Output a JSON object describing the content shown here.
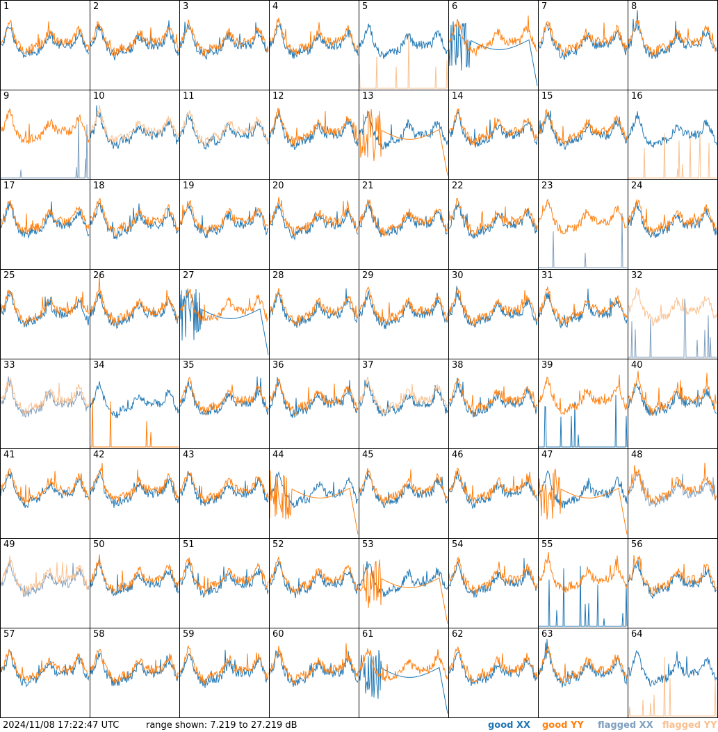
{
  "timestamp": "2024/11/08 17:22:47 UTC",
  "range_text": "range shown: 7.219 to 27.219 dB",
  "legend": {
    "good_xx": "good XX",
    "good_yy": "good YY",
    "flagged_xx": "flagged XX",
    "flagged_yy": "flagged YY"
  },
  "colors": {
    "good_xx": "#1f77b4",
    "good_yy": "#ff7f0e",
    "flagged_xx": "#7f9fbf",
    "flagged_yy": "#f9c08f"
  },
  "chart_data": {
    "type": "line",
    "grid_layout": [
      8,
      8
    ],
    "ylim_db": [
      7.219,
      27.219
    ],
    "panels": [
      {
        "id": 1,
        "xx_status": "good",
        "yy_status": "good",
        "xx_shape": "normal",
        "yy_shape": "normal"
      },
      {
        "id": 2,
        "xx_status": "good",
        "yy_status": "good",
        "xx_shape": "normal",
        "yy_shape": "normal"
      },
      {
        "id": 3,
        "xx_status": "good",
        "yy_status": "good",
        "xx_shape": "normal",
        "yy_shape": "normal"
      },
      {
        "id": 4,
        "xx_status": "good",
        "yy_status": "good",
        "xx_shape": "normal",
        "yy_shape": "normal"
      },
      {
        "id": 5,
        "xx_status": "good",
        "yy_status": "flagged",
        "xx_shape": "normal",
        "yy_shape": "spikes"
      },
      {
        "id": 6,
        "xx_status": "good",
        "yy_status": "good",
        "xx_shape": "dip",
        "yy_shape": "normal"
      },
      {
        "id": 7,
        "xx_status": "good",
        "yy_status": "good",
        "xx_shape": "normal",
        "yy_shape": "normal"
      },
      {
        "id": 8,
        "xx_status": "good",
        "yy_status": "good",
        "xx_shape": "normal",
        "yy_shape": "normal"
      },
      {
        "id": 9,
        "xx_status": "flagged",
        "yy_status": "good",
        "xx_shape": "spikes",
        "yy_shape": "normal"
      },
      {
        "id": 10,
        "xx_status": "good",
        "yy_status": "flagged",
        "xx_shape": "normal",
        "yy_shape": "normal"
      },
      {
        "id": 11,
        "xx_status": "good",
        "yy_status": "flagged",
        "xx_shape": "normal",
        "yy_shape": "normal"
      },
      {
        "id": 12,
        "xx_status": "good",
        "yy_status": "good",
        "xx_shape": "normal",
        "yy_shape": "normal"
      },
      {
        "id": 13,
        "xx_status": "good",
        "yy_status": "good",
        "xx_shape": "normal",
        "yy_shape": "dip"
      },
      {
        "id": 14,
        "xx_status": "good",
        "yy_status": "good",
        "xx_shape": "normal",
        "yy_shape": "normal"
      },
      {
        "id": 15,
        "xx_status": "good",
        "yy_status": "good",
        "xx_shape": "normal",
        "yy_shape": "normal"
      },
      {
        "id": 16,
        "xx_status": "good",
        "yy_status": "flagged",
        "xx_shape": "normal",
        "yy_shape": "spikes"
      },
      {
        "id": 17,
        "xx_status": "good",
        "yy_status": "good",
        "xx_shape": "normal",
        "yy_shape": "normal"
      },
      {
        "id": 18,
        "xx_status": "good",
        "yy_status": "good",
        "xx_shape": "normal",
        "yy_shape": "normal"
      },
      {
        "id": 19,
        "xx_status": "good",
        "yy_status": "good",
        "xx_shape": "normal",
        "yy_shape": "normal"
      },
      {
        "id": 20,
        "xx_status": "good",
        "yy_status": "good",
        "xx_shape": "normal",
        "yy_shape": "normal"
      },
      {
        "id": 21,
        "xx_status": "good",
        "yy_status": "good",
        "xx_shape": "normal",
        "yy_shape": "normal"
      },
      {
        "id": 22,
        "xx_status": "good",
        "yy_status": "good",
        "xx_shape": "normal",
        "yy_shape": "normal"
      },
      {
        "id": 23,
        "xx_status": "flagged",
        "yy_status": "good",
        "xx_shape": "spikes",
        "yy_shape": "normal"
      },
      {
        "id": 24,
        "xx_status": "good",
        "yy_status": "good",
        "xx_shape": "normal",
        "yy_shape": "normal"
      },
      {
        "id": 25,
        "xx_status": "good",
        "yy_status": "good",
        "xx_shape": "normal",
        "yy_shape": "normal"
      },
      {
        "id": 26,
        "xx_status": "good",
        "yy_status": "good",
        "xx_shape": "normal",
        "yy_shape": "normal"
      },
      {
        "id": 27,
        "xx_status": "good",
        "yy_status": "good",
        "xx_shape": "dip",
        "yy_shape": "normal"
      },
      {
        "id": 28,
        "xx_status": "good",
        "yy_status": "good",
        "xx_shape": "normal",
        "yy_shape": "normal"
      },
      {
        "id": 29,
        "xx_status": "good",
        "yy_status": "good",
        "xx_shape": "normal",
        "yy_shape": "normal"
      },
      {
        "id": 30,
        "xx_status": "good",
        "yy_status": "good",
        "xx_shape": "normal",
        "yy_shape": "normal"
      },
      {
        "id": 31,
        "xx_status": "good",
        "yy_status": "good",
        "xx_shape": "normal",
        "yy_shape": "normal"
      },
      {
        "id": 32,
        "xx_status": "flagged",
        "yy_status": "flagged",
        "xx_shape": "spikes",
        "yy_shape": "normal"
      },
      {
        "id": 33,
        "xx_status": "flagged",
        "yy_status": "flagged",
        "xx_shape": "normal",
        "yy_shape": "normal"
      },
      {
        "id": 34,
        "xx_status": "good",
        "yy_status": "good",
        "xx_shape": "normal",
        "yy_shape": "spikes"
      },
      {
        "id": 35,
        "xx_status": "good",
        "yy_status": "good",
        "xx_shape": "normal",
        "yy_shape": "normal"
      },
      {
        "id": 36,
        "xx_status": "good",
        "yy_status": "good",
        "xx_shape": "normal",
        "yy_shape": "normal"
      },
      {
        "id": 37,
        "xx_status": "good",
        "yy_status": "flagged",
        "xx_shape": "normal",
        "yy_shape": "normal"
      },
      {
        "id": 38,
        "xx_status": "good",
        "yy_status": "good",
        "xx_shape": "normal",
        "yy_shape": "normal"
      },
      {
        "id": 39,
        "xx_status": "good",
        "yy_status": "good",
        "xx_shape": "spikes",
        "yy_shape": "normal"
      },
      {
        "id": 40,
        "xx_status": "good",
        "yy_status": "good",
        "xx_shape": "normal",
        "yy_shape": "normal"
      },
      {
        "id": 41,
        "xx_status": "good",
        "yy_status": "good",
        "xx_shape": "normal",
        "yy_shape": "normal"
      },
      {
        "id": 42,
        "xx_status": "good",
        "yy_status": "good",
        "xx_shape": "normal",
        "yy_shape": "normal"
      },
      {
        "id": 43,
        "xx_status": "good",
        "yy_status": "good",
        "xx_shape": "normal",
        "yy_shape": "normal"
      },
      {
        "id": 44,
        "xx_status": "good",
        "yy_status": "good",
        "xx_shape": "normal",
        "yy_shape": "dip"
      },
      {
        "id": 45,
        "xx_status": "good",
        "yy_status": "good",
        "xx_shape": "normal",
        "yy_shape": "normal"
      },
      {
        "id": 46,
        "xx_status": "good",
        "yy_status": "good",
        "xx_shape": "normal",
        "yy_shape": "normal"
      },
      {
        "id": 47,
        "xx_status": "good",
        "yy_status": "good",
        "xx_shape": "normal",
        "yy_shape": "dip"
      },
      {
        "id": 48,
        "xx_status": "flagged",
        "yy_status": "good",
        "xx_shape": "normal",
        "yy_shape": "normal"
      },
      {
        "id": 49,
        "xx_status": "flagged",
        "yy_status": "flagged",
        "xx_shape": "normal",
        "yy_shape": "normal"
      },
      {
        "id": 50,
        "xx_status": "good",
        "yy_status": "good",
        "xx_shape": "normal",
        "yy_shape": "normal"
      },
      {
        "id": 51,
        "xx_status": "good",
        "yy_status": "good",
        "xx_shape": "normal",
        "yy_shape": "normal"
      },
      {
        "id": 52,
        "xx_status": "good",
        "yy_status": "good",
        "xx_shape": "normal",
        "yy_shape": "normal"
      },
      {
        "id": 53,
        "xx_status": "good",
        "yy_status": "good",
        "xx_shape": "normal",
        "yy_shape": "dip"
      },
      {
        "id": 54,
        "xx_status": "good",
        "yy_status": "good",
        "xx_shape": "normal",
        "yy_shape": "normal"
      },
      {
        "id": 55,
        "xx_status": "good",
        "yy_status": "good",
        "xx_shape": "spikes",
        "yy_shape": "normal"
      },
      {
        "id": 56,
        "xx_status": "good",
        "yy_status": "good",
        "xx_shape": "normal",
        "yy_shape": "normal"
      },
      {
        "id": 57,
        "xx_status": "good",
        "yy_status": "good",
        "xx_shape": "normal",
        "yy_shape": "normal"
      },
      {
        "id": 58,
        "xx_status": "good",
        "yy_status": "good",
        "xx_shape": "normal",
        "yy_shape": "normal"
      },
      {
        "id": 59,
        "xx_status": "good",
        "yy_status": "good",
        "xx_shape": "normal",
        "yy_shape": "normal"
      },
      {
        "id": 60,
        "xx_status": "good",
        "yy_status": "good",
        "xx_shape": "normal",
        "yy_shape": "normal"
      },
      {
        "id": 61,
        "xx_status": "good",
        "yy_status": "good",
        "xx_shape": "dip",
        "yy_shape": "normal"
      },
      {
        "id": 62,
        "xx_status": "good",
        "yy_status": "good",
        "xx_shape": "normal",
        "yy_shape": "normal"
      },
      {
        "id": 63,
        "xx_status": "good",
        "yy_status": "good",
        "xx_shape": "normal",
        "yy_shape": "normal"
      },
      {
        "id": 64,
        "xx_status": "good",
        "yy_status": "flagged",
        "xx_shape": "normal",
        "yy_shape": "spikes"
      }
    ]
  }
}
